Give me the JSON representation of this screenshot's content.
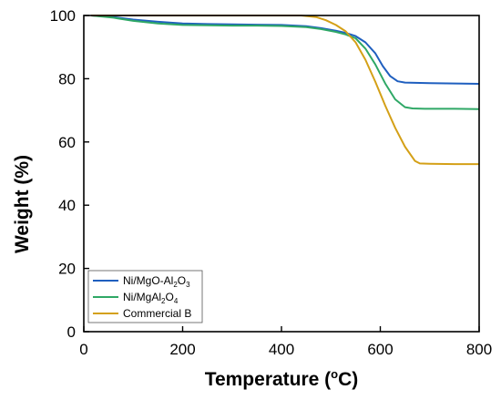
{
  "chart_data": {
    "type": "line",
    "title": "",
    "xlabel": "Temperature (",
    "xlabel_unit_sup": "o",
    "xlabel_unit": "C)",
    "ylabel": "Weight (%)",
    "xlim": [
      0,
      800
    ],
    "ylim": [
      0,
      100
    ],
    "xticks": [
      0,
      200,
      400,
      600,
      800
    ],
    "yticks": [
      0,
      20,
      40,
      60,
      80,
      100
    ],
    "grid": false,
    "legend_position": "bottom-left",
    "series": [
      {
        "name": "Ni/MgO-Al2O3",
        "label_parts": [
          [
            "Ni/MgO-Al",
            ""
          ],
          [
            "2",
            "sub"
          ],
          [
            "O",
            ""
          ],
          [
            "3",
            "sub"
          ]
        ],
        "color": "#1f5fbf",
        "x": [
          15,
          60,
          100,
          150,
          200,
          250,
          300,
          350,
          400,
          450,
          480,
          510,
          530,
          550,
          570,
          590,
          605,
          620,
          635,
          650,
          670,
          700,
          750,
          800
        ],
        "y": [
          100,
          99.5,
          98.7,
          98.0,
          97.5,
          97.3,
          97.2,
          97.1,
          97.0,
          96.6,
          96.0,
          95.2,
          94.5,
          93.5,
          91.5,
          88.0,
          84.0,
          80.8,
          79.2,
          78.8,
          78.7,
          78.6,
          78.5,
          78.4
        ]
      },
      {
        "name": "Ni/MgAl2O4",
        "label_parts": [
          [
            "Ni/MgAl",
            ""
          ],
          [
            "2",
            "sub"
          ],
          [
            "O",
            ""
          ],
          [
            "4",
            "sub"
          ]
        ],
        "color": "#2fa866",
        "x": [
          15,
          60,
          100,
          150,
          200,
          250,
          300,
          350,
          400,
          450,
          480,
          510,
          530,
          550,
          570,
          590,
          610,
          630,
          650,
          665,
          690,
          750,
          800
        ],
        "y": [
          100,
          99.3,
          98.3,
          97.5,
          97.0,
          96.9,
          96.8,
          96.8,
          96.7,
          96.3,
          95.7,
          94.8,
          94.0,
          92.8,
          89.5,
          84.5,
          78.5,
          73.5,
          71.0,
          70.6,
          70.5,
          70.5,
          70.4
        ]
      },
      {
        "name": "Commercial B",
        "label_parts": [
          [
            "Commercial B",
            ""
          ]
        ],
        "color": "#d4a017",
        "x": [
          15,
          100,
          200,
          300,
          400,
          440,
          470,
          490,
          510,
          530,
          550,
          570,
          590,
          610,
          630,
          650,
          670,
          680,
          700,
          750,
          800
        ],
        "y": [
          100,
          100,
          100,
          100,
          100,
          100,
          99.5,
          98.5,
          97.0,
          95.0,
          91.5,
          86.0,
          79.0,
          71.5,
          64.5,
          58.5,
          54.0,
          53.2,
          53.1,
          53.0,
          53.0
        ]
      }
    ]
  }
}
